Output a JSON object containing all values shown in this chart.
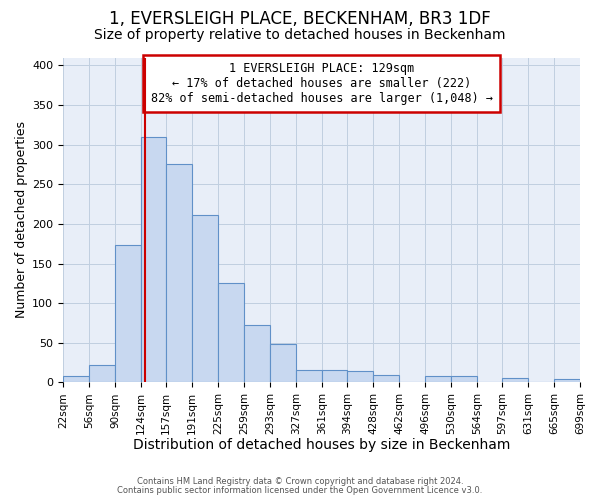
{
  "title": "1, EVERSLEIGH PLACE, BECKENHAM, BR3 1DF",
  "subtitle": "Size of property relative to detached houses in Beckenham",
  "xlabel": "Distribution of detached houses by size in Beckenham",
  "ylabel": "Number of detached properties",
  "bin_edges": [
    22,
    56,
    90,
    124,
    157,
    191,
    225,
    259,
    293,
    327,
    361,
    394,
    428,
    462,
    496,
    530,
    564,
    597,
    631,
    665,
    699
  ],
  "bin_heights": [
    8,
    22,
    173,
    310,
    276,
    211,
    126,
    73,
    48,
    16,
    16,
    14,
    9,
    0,
    8,
    8,
    0,
    6,
    0,
    5
  ],
  "bar_facecolor": "#c8d8f0",
  "bar_edgecolor": "#6090c8",
  "vline_x": 129,
  "vline_color": "#cc0000",
  "ylim": [
    0,
    410
  ],
  "yticks": [
    0,
    50,
    100,
    150,
    200,
    250,
    300,
    350,
    400
  ],
  "annotation_box_text": "1 EVERSLEIGH PLACE: 129sqm\n← 17% of detached houses are smaller (222)\n82% of semi-detached houses are larger (1,048) →",
  "annotation_box_facecolor": "white",
  "annotation_box_edgecolor": "#cc0000",
  "footer1": "Contains HM Land Registry data © Crown copyright and database right 2024.",
  "footer2": "Contains public sector information licensed under the Open Government Licence v3.0.",
  "grid_color": "#c0cfe0",
  "background_color": "#e8eef8",
  "title_fontsize": 12,
  "subtitle_fontsize": 10,
  "xlabel_fontsize": 10,
  "ylabel_fontsize": 9,
  "tick_labels": [
    "22sqm",
    "56sqm",
    "90sqm",
    "124sqm",
    "157sqm",
    "191sqm",
    "225sqm",
    "259sqm",
    "293sqm",
    "327sqm",
    "361sqm",
    "394sqm",
    "428sqm",
    "462sqm",
    "496sqm",
    "530sqm",
    "564sqm",
    "597sqm",
    "631sqm",
    "665sqm",
    "699sqm"
  ]
}
